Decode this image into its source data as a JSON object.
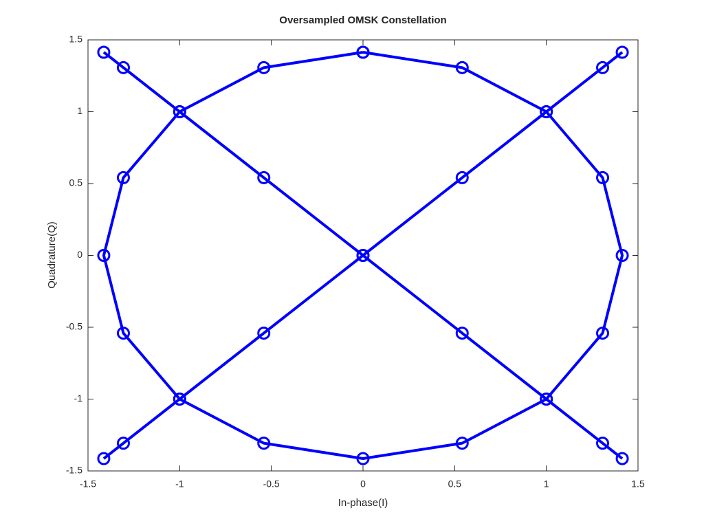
{
  "chart_data": {
    "type": "line",
    "title": "Oversampled OMSK Constellation",
    "x_label": "In-phase(I)",
    "y_label": "Quadrature(Q)",
    "x": [
      0,
      0.541,
      1,
      1.307,
      1.414,
      1.307,
      1,
      0.541,
      0,
      -0.541,
      -1,
      -1.307,
      -1.414,
      -1.307,
      -1,
      -0.541,
      0,
      null,
      -1.414,
      -1.307,
      -1,
      -0.541,
      0,
      0.541,
      1,
      1.307,
      1.414,
      null,
      -1.414,
      -1.307,
      -1,
      -0.541,
      0,
      0.541,
      1,
      1.307,
      1.414
    ],
    "series": [
      {
        "color": "#0000ff",
        "marker": "circle",
        "values": [
          1.414,
          1.307,
          1,
          0.541,
          0,
          -0.541,
          -1,
          -1.307,
          -1.414,
          -1.307,
          -1,
          -0.541,
          0,
          0.541,
          1,
          1.307,
          1.414,
          null,
          1.414,
          1.307,
          1,
          0.541,
          0,
          -0.541,
          -1,
          -1.307,
          -1.414,
          null,
          -1.414,
          -1.307,
          -1,
          -0.541,
          0,
          0.541,
          1,
          1.307,
          1.414
        ]
      }
    ],
    "xlim": [
      -1.5,
      1.5
    ],
    "xticks": [
      -1.5,
      -1,
      -0.5,
      0,
      0.5,
      1,
      1.5
    ],
    "ylim": [
      -1.5,
      1.5
    ],
    "yticks": [
      -1.5,
      -1,
      -0.5,
      0,
      0.5,
      1,
      1.5
    ],
    "grid": false
  }
}
